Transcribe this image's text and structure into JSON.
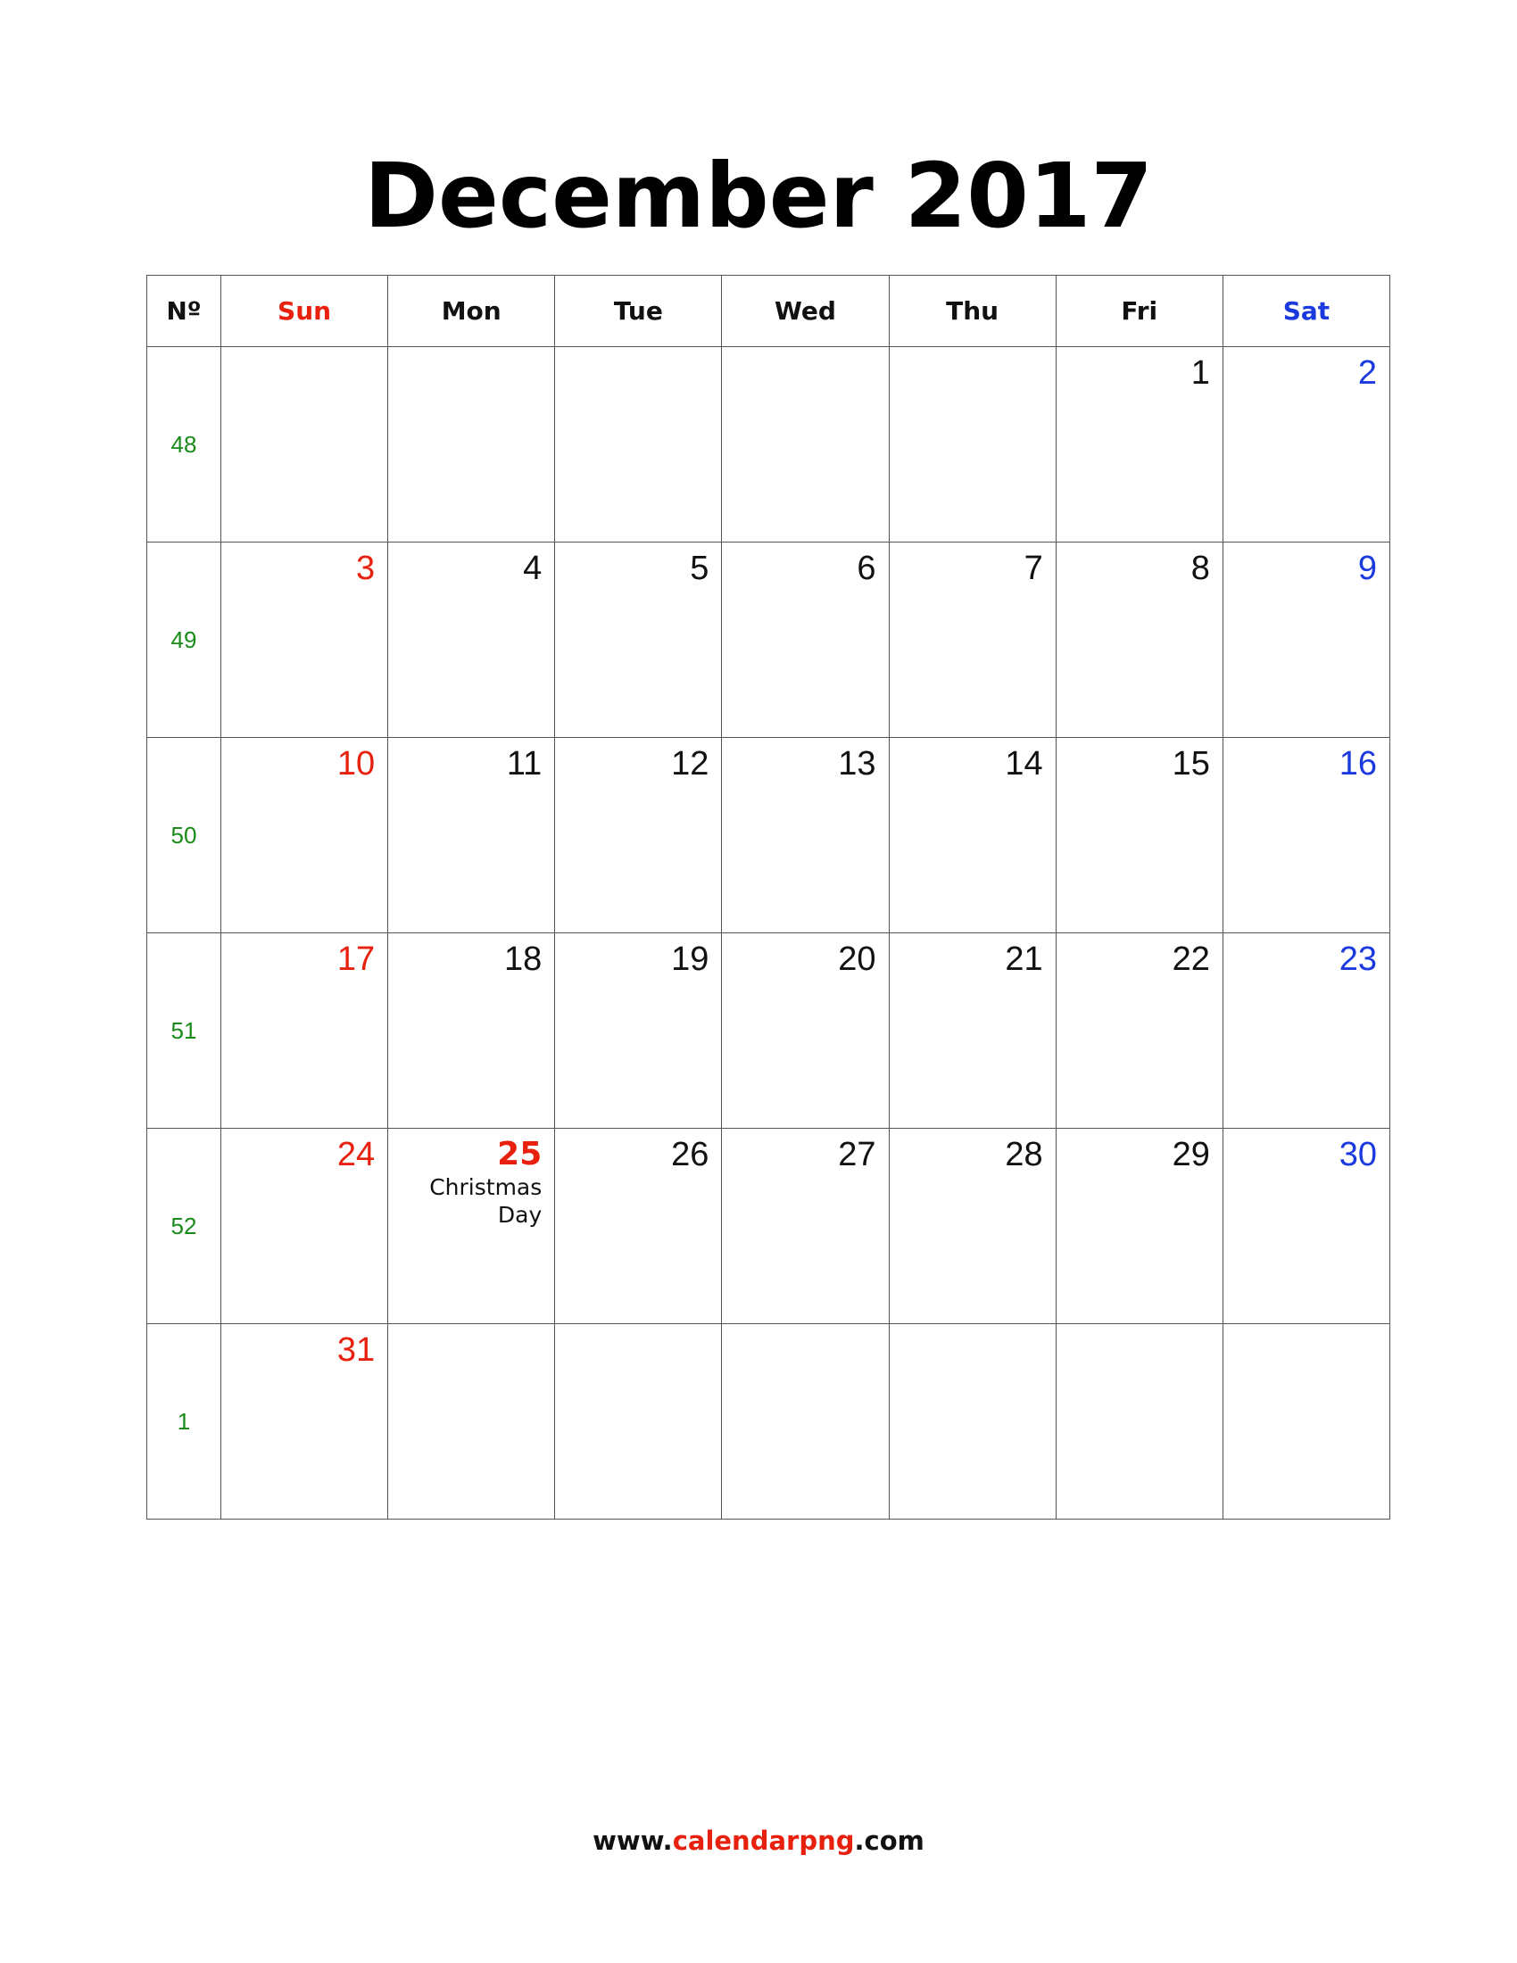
{
  "title": "December 2017",
  "headers": [
    "Nº",
    "Sun",
    "Mon",
    "Tue",
    "Wed",
    "Thu",
    "Fri",
    "Sat"
  ],
  "weeks": [
    {
      "week": "48",
      "days": [
        null,
        null,
        null,
        null,
        null,
        "1",
        "2"
      ]
    },
    {
      "week": "49",
      "days": [
        "3",
        "4",
        "5",
        "6",
        "7",
        "8",
        "9"
      ]
    },
    {
      "week": "50",
      "days": [
        "10",
        "11",
        "12",
        "13",
        "14",
        "15",
        "16"
      ]
    },
    {
      "week": "51",
      "days": [
        "17",
        "18",
        "19",
        "20",
        "21",
        "22",
        "23"
      ]
    },
    {
      "week": "52",
      "days": [
        "24",
        {
          "date": "25",
          "note": "Christmas Day"
        },
        "26",
        "27",
        "28",
        "29",
        "30"
      ]
    },
    {
      "week": "1",
      "days": [
        "31",
        null,
        null,
        null,
        null,
        null,
        null
      ]
    }
  ],
  "footer": [
    "www.",
    "calendarpng",
    ".com"
  ]
}
